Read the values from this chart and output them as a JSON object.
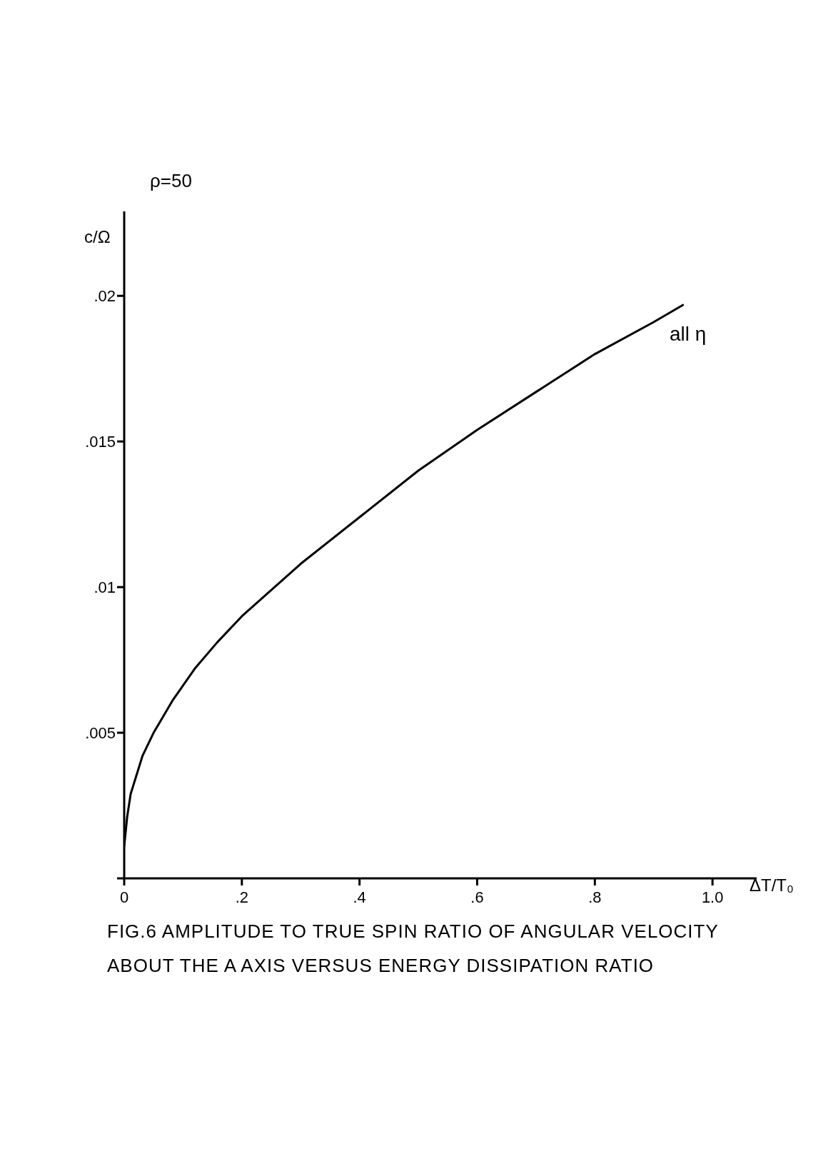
{
  "chart_data": {
    "type": "line",
    "title": "FIG.6 AMPLITUDE TO TRUE SPIN RATIO OF ANGULAR VELOCITY ABOUT THE A AXIS VERSUS ENERGY DISSIPATION RATIO",
    "xlabel": "ΔT/T₀",
    "ylabel": "c/Ω",
    "annotations": [
      "ρ=50",
      "all η"
    ],
    "x": [
      0,
      0.005,
      0.011,
      0.031,
      0.05,
      0.082,
      0.12,
      0.158,
      0.2,
      0.3,
      0.4,
      0.5,
      0.6,
      0.7,
      0.8,
      0.9,
      0.951
    ],
    "series": [
      {
        "color": "#000000",
        "values": [
          0.0011,
          0.0021,
          0.0029,
          0.0042,
          0.005,
          0.0061,
          0.0072,
          0.0081,
          0.009,
          0.0108,
          0.0124,
          0.014,
          0.0154,
          0.0167,
          0.018,
          0.0191,
          0.0197
        ]
      }
    ],
    "xlim": [
      0,
      1.075
    ],
    "ylim": [
      0,
      0.0229
    ],
    "xticks": [
      0,
      {
        "value": 0.2,
        "label": ".2"
      },
      {
        "value": 0.4,
        "label": ".4"
      },
      {
        "value": 0.6,
        "label": ".6"
      },
      {
        "value": 0.8,
        "label": ".8"
      },
      {
        "value": 1,
        "label": "1.0"
      }
    ],
    "yticks": [
      {
        "value": 0,
        "label": null
      },
      {
        "value": 0.005,
        "label": ".005"
      },
      {
        "value": 0.01,
        "label": ".01"
      },
      {
        "value": 0.015,
        "label": ".015"
      },
      {
        "value": 0.02,
        "label": ".02"
      }
    ],
    "grid": false,
    "legend": false,
    "marker": "none",
    "line_style": "solid"
  }
}
